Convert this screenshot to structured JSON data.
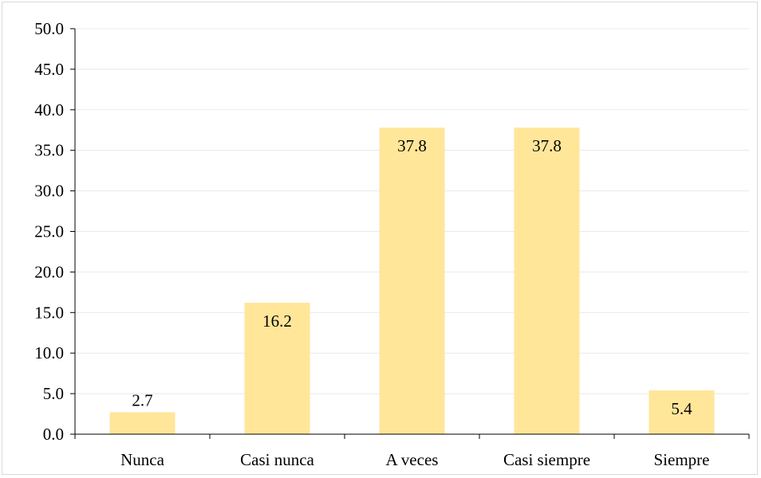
{
  "chart_data": {
    "type": "bar",
    "categories": [
      "Nunca",
      "Casi nunca",
      "A veces",
      "Casi siempre",
      "Siempre"
    ],
    "values": [
      2.7,
      16.2,
      37.8,
      37.8,
      5.4
    ],
    "data_labels": [
      "2.7",
      "16.2",
      "37.8",
      "37.8",
      "5.4"
    ],
    "y_ticks": [
      "0.0",
      "5.0",
      "10.0",
      "15.0",
      "20.0",
      "25.0",
      "30.0",
      "35.0",
      "40.0",
      "45.0",
      "50.0"
    ],
    "ylim": [
      0,
      50
    ],
    "grid": true,
    "legend": "none",
    "title": "",
    "xlabel": "",
    "ylabel": "",
    "colors": {
      "bar": "#FFE699",
      "grid": "#e9e9e9",
      "axis": "#000000"
    }
  }
}
